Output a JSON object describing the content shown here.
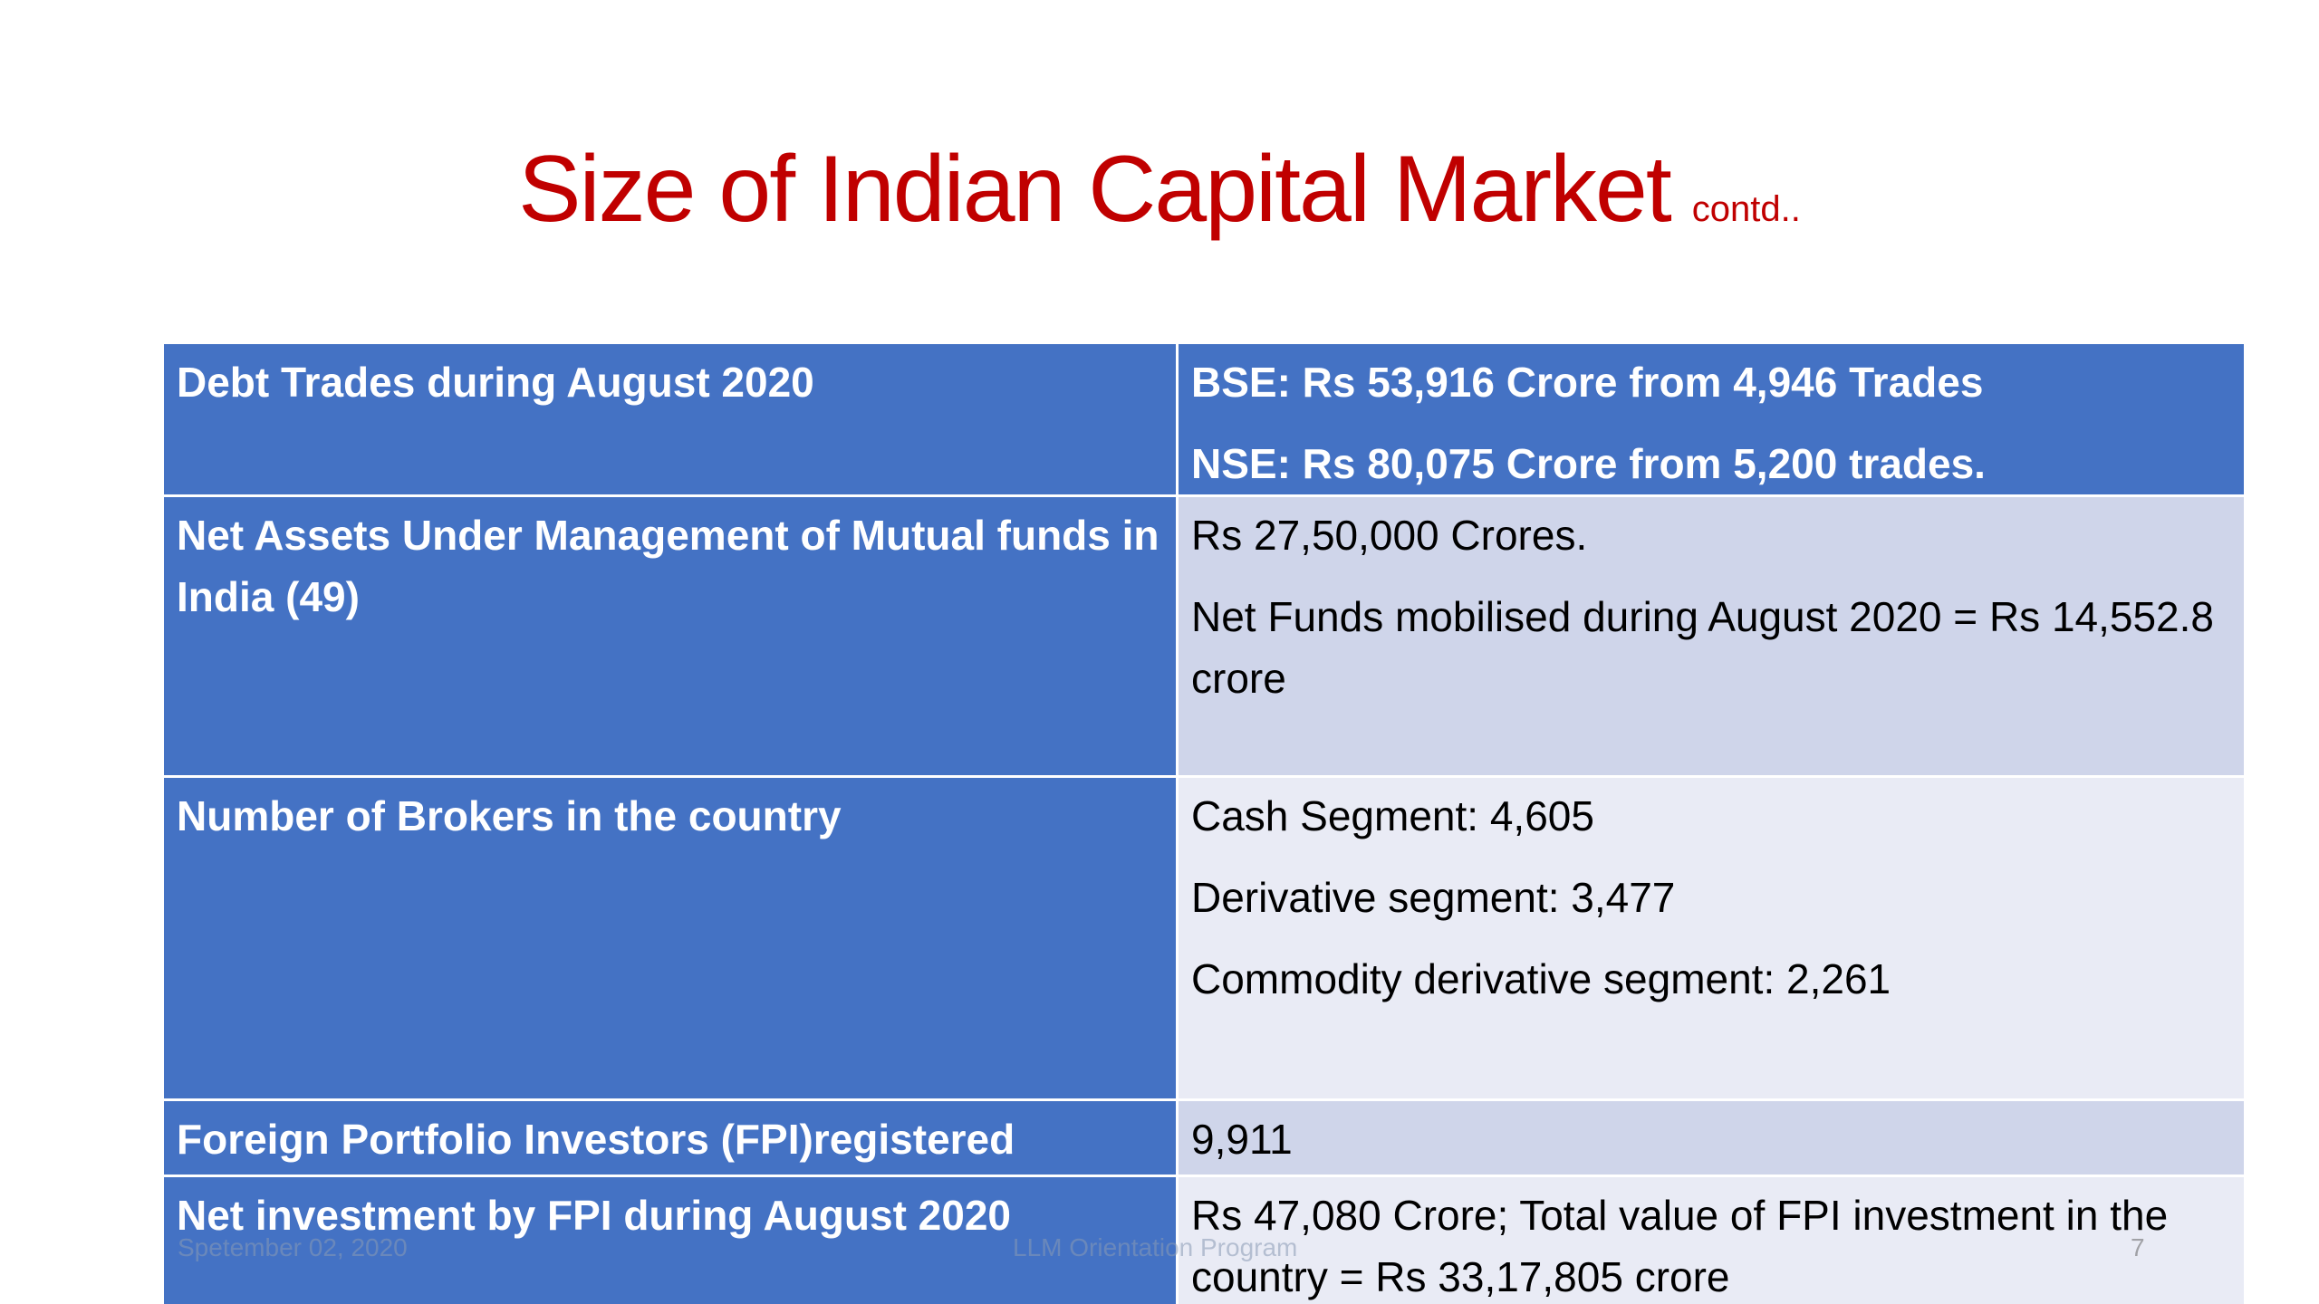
{
  "title": {
    "main": "Size of Indian Capital Market",
    "sub": "contd.."
  },
  "rows": [
    {
      "label": "Debt Trades during August 2020",
      "lines": [
        "BSE: Rs 53,916 Crore from 4,946 Trades",
        "NSE: Rs 80,075  Crore from 5,200 trades."
      ]
    },
    {
      "label": "Net Assets Under Management of Mutual funds in India (49)",
      "lines": [
        "Rs 27,50,000 Crores.",
        "Net Funds mobilised during August 2020 = Rs 14,552.8 crore"
      ]
    },
    {
      "label": "Number of Brokers in the country",
      "lines": [
        "Cash Segment: 4,605",
        "Derivative segment: 3,477",
        "Commodity derivative segment: 2,261"
      ]
    },
    {
      "label": "Foreign Portfolio Investors (FPI)registered",
      "lines": [
        "9,911"
      ]
    },
    {
      "label": "Net investment by FPI during August 2020",
      "lines": [
        "Rs 47,080 Crore;  Total value of FPI investment in the country =  Rs 33,17,805 crore"
      ]
    }
  ],
  "footer": {
    "date": "Spetember 02, 2020",
    "center": "LLM Orientation Program",
    "page": "7"
  },
  "colors": {
    "title": "#c00000",
    "header_fill": "#4472c4",
    "band_dark": "#cfd5ea",
    "band_light": "#e9ebf5"
  }
}
